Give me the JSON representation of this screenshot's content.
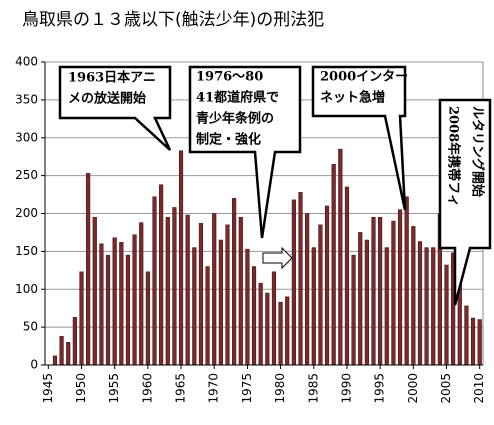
{
  "chart_data": {
    "type": "bar",
    "title": "鳥取県の１３歳以下(触法少年)の刑法犯",
    "x": [
      1946,
      1947,
      1948,
      1949,
      1950,
      1951,
      1952,
      1953,
      1954,
      1955,
      1956,
      1957,
      1958,
      1959,
      1960,
      1961,
      1962,
      1963,
      1964,
      1965,
      1966,
      1967,
      1968,
      1969,
      1970,
      1971,
      1972,
      1973,
      1974,
      1975,
      1976,
      1977,
      1978,
      1979,
      1980,
      1981,
      1982,
      1983,
      1984,
      1985,
      1986,
      1987,
      1988,
      1989,
      1990,
      1991,
      1992,
      1993,
      1994,
      1995,
      1996,
      1997,
      1998,
      1999,
      2000,
      2001,
      2002,
      2003,
      2004,
      2005,
      2006,
      2007,
      2008,
      2009,
      2010
    ],
    "values": [
      12,
      38,
      30,
      63,
      123,
      253,
      195,
      160,
      145,
      168,
      162,
      145,
      172,
      188,
      123,
      222,
      238,
      195,
      208,
      283,
      198,
      155,
      187,
      130,
      200,
      165,
      185,
      220,
      195,
      153,
      130,
      108,
      95,
      123,
      83,
      90,
      218,
      228,
      200,
      155,
      185,
      210,
      265,
      285,
      235,
      145,
      175,
      165,
      195,
      195,
      155,
      190,
      205,
      222,
      183,
      163,
      155,
      155,
      200,
      132,
      148,
      110,
      78,
      62,
      60
    ],
    "color": "#7a2a2a",
    "xlim": [
      1944.5,
      2010.5
    ],
    "xticks": [
      1945,
      1950,
      1955,
      1960,
      1965,
      1970,
      1975,
      1980,
      1985,
      1990,
      1995,
      2000,
      2005,
      2010
    ],
    "ylim": [
      0,
      400
    ],
    "yticks": [
      0,
      50,
      100,
      150,
      200,
      250,
      300,
      350,
      400
    ],
    "grid": true,
    "annotations": [
      [
        "1963日本アニ",
        "メの放送開始"
      ],
      [
        "1976～80",
        "41都道府県で",
        "青少年条例の",
        "制定・強化"
      ],
      [
        "2000インター",
        "ネット急増"
      ],
      [
        "2008年携帯フィ",
        "ルタリング開始"
      ]
    ]
  }
}
